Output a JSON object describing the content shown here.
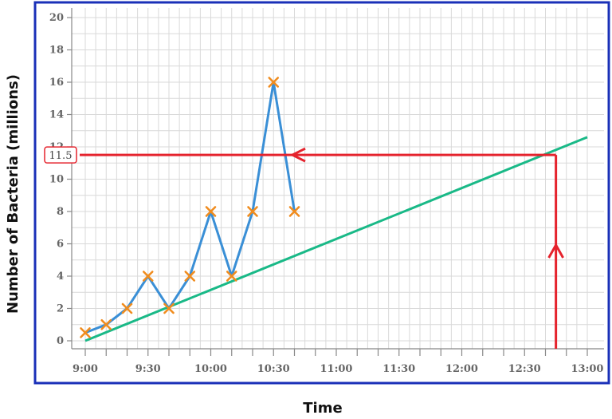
{
  "chart_data": {
    "type": "line",
    "xlabel": "Time",
    "ylabel": "Number of Bacteria (millions)",
    "x_tick_labels": [
      "9:00",
      "9:30",
      "10:00",
      "10:30",
      "11:00",
      "11:30",
      "12:00",
      "12:30",
      "13:00"
    ],
    "y_ticks": [
      0,
      2,
      4,
      6,
      8,
      10,
      12,
      14,
      16,
      18,
      20
    ],
    "y_tick_labels": [
      "0",
      "2",
      "4",
      "6",
      "8",
      "10",
      "12",
      "14",
      "16",
      "18",
      "20"
    ],
    "xlim": [
      "9:00",
      "13:00"
    ],
    "ylim": [
      0,
      20
    ],
    "grid": true,
    "series": [
      {
        "points": [
          {
            "x": "9:00",
            "y": 0.5
          },
          {
            "x": "9:10",
            "y": 1
          },
          {
            "x": "9:20",
            "y": 2
          },
          {
            "x": "9:30",
            "y": 4
          },
          {
            "x": "9:40",
            "y": 2
          },
          {
            "x": "9:50",
            "y": 4
          },
          {
            "x": "10:00",
            "y": 8
          },
          {
            "x": "10:10",
            "y": 4
          },
          {
            "x": "10:20",
            "y": 8
          },
          {
            "x": "10:30",
            "y": 16
          },
          {
            "x": "10:40",
            "y": 8
          }
        ],
        "color": "#3a8fd6",
        "marker": "x",
        "marker_color": "#f08c1e"
      }
    ],
    "trend_line": {
      "from": {
        "x": "9:00",
        "y": 0
      },
      "to": {
        "x": "13:00",
        "y": 12.6
      },
      "color": "#19b987"
    },
    "reading": {
      "x": "12:45",
      "y": 11.5,
      "label": "11.5",
      "color": "#e5232d"
    }
  },
  "colors": {
    "frame": "#1a30b8",
    "grid": "#d9d9d9",
    "axis": "#888888"
  }
}
